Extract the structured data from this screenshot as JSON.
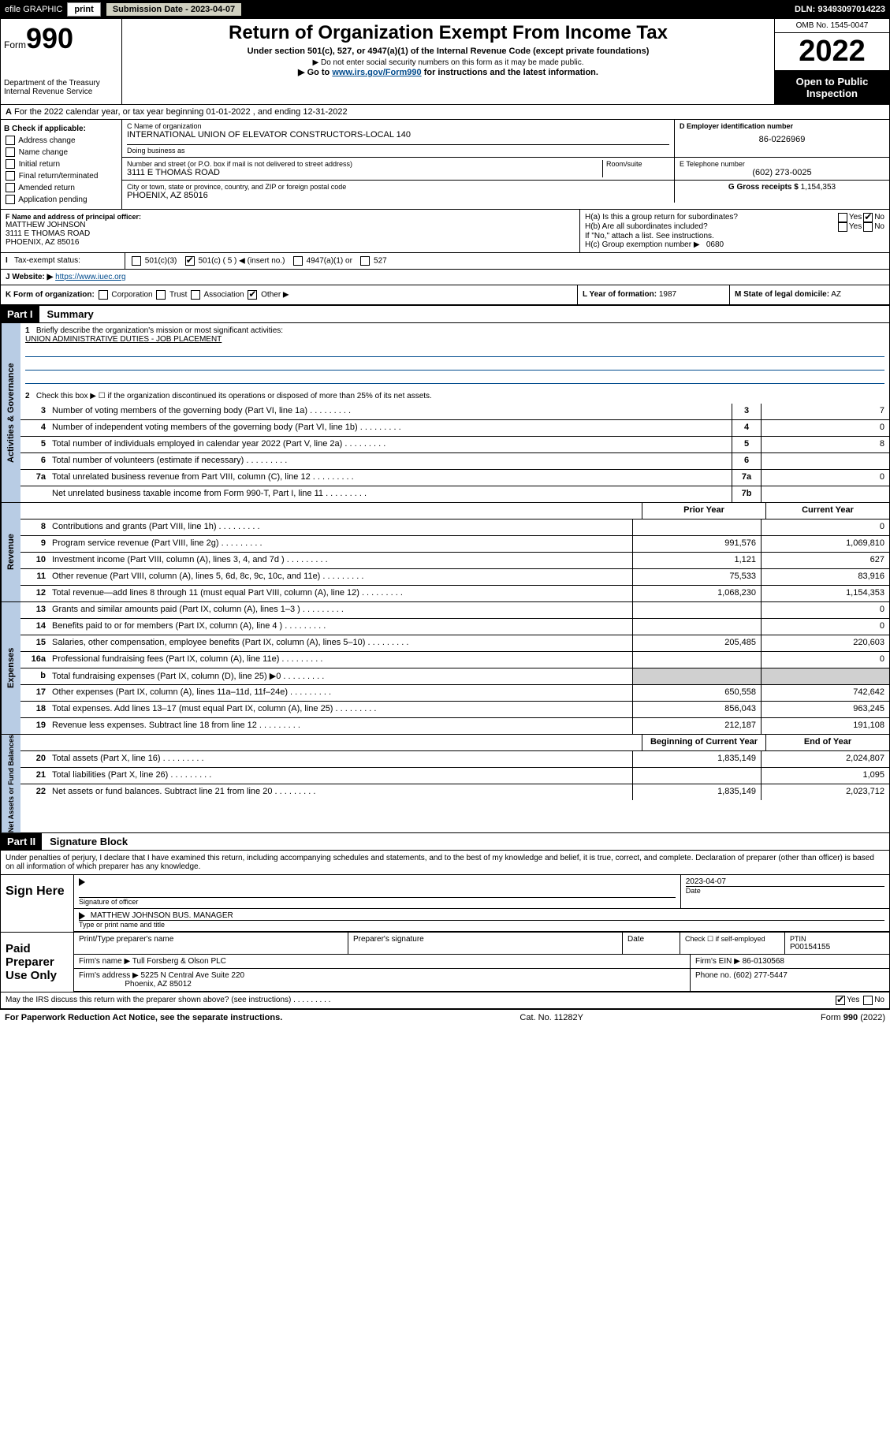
{
  "topbar": {
    "efile": "efile GRAPHIC",
    "print": "print",
    "submission": "Submission Date - 2023-04-07",
    "dln": "DLN: 93493097014223"
  },
  "header": {
    "form_prefix": "Form",
    "form_num": "990",
    "title": "Return of Organization Exempt From Income Tax",
    "subtitle": "Under section 501(c), 527, or 4947(a)(1) of the Internal Revenue Code (except private foundations)",
    "note1": "▶ Do not enter social security numbers on this form as it may be made public.",
    "note2_pre": "▶ Go to ",
    "note2_link": "www.irs.gov/Form990",
    "note2_post": " for instructions and the latest information.",
    "dept": "Department of the Treasury",
    "irs": "Internal Revenue Service",
    "omb": "OMB No. 1545-0047",
    "year": "2022",
    "open1": "Open to Public",
    "open2": "Inspection"
  },
  "row_a": "For the 2022 calendar year, or tax year beginning 01-01-2022    , and ending 12-31-2022",
  "section_b": {
    "title": "B Check if applicable:",
    "items": [
      "Address change",
      "Name change",
      "Initial return",
      "Final return/terminated",
      "Amended return",
      "Application pending"
    ]
  },
  "section_c": {
    "name_lbl": "C Name of organization",
    "name": "INTERNATIONAL UNION OF ELEVATOR CONSTRUCTORS-LOCAL 140",
    "dba_lbl": "Doing business as",
    "addr_lbl": "Number and street (or P.O. box if mail is not delivered to street address)",
    "room_lbl": "Room/suite",
    "addr": "3111 E THOMAS ROAD",
    "city_lbl": "City or town, state or province, country, and ZIP or foreign postal code",
    "city": "PHOENIX, AZ  85016"
  },
  "section_d": {
    "lbl": "D Employer identification number",
    "val": "86-0226969"
  },
  "section_e": {
    "lbl": "E Telephone number",
    "val": "(602) 273-0025"
  },
  "section_g": {
    "lbl": "G Gross receipts $",
    "val": "1,154,353"
  },
  "section_f": {
    "lbl": "F  Name and address of principal officer:",
    "name": "MATTHEW JOHNSON",
    "addr1": "3111 E THOMAS ROAD",
    "addr2": "PHOENIX, AZ  85016"
  },
  "section_h": {
    "ha": "H(a)  Is this a group return for subordinates?",
    "hb": "H(b)  Are all subordinates included?",
    "hb_note": "If \"No,\" attach a list. See instructions.",
    "hc": "H(c)  Group exemption number ▶",
    "hc_val": "0680",
    "yes": "Yes",
    "no": "No"
  },
  "section_i": {
    "lbl": "Tax-exempt status:",
    "o1": "501(c)(3)",
    "o2": "501(c) ( 5 ) ◀ (insert no.)",
    "o3": "4947(a)(1) or",
    "o4": "527"
  },
  "section_j": {
    "lbl": "J   Website: ▶",
    "val": "https://www.iuec.org"
  },
  "section_k": {
    "lbl": "K Form of organization:",
    "o1": "Corporation",
    "o2": "Trust",
    "o3": "Association",
    "o4": "Other ▶"
  },
  "section_l": {
    "lbl": "L Year of formation:",
    "val": "1987"
  },
  "section_m": {
    "lbl": "M State of legal domicile:",
    "val": "AZ"
  },
  "part1": {
    "header": "Part I",
    "title": "Summary",
    "line1_lbl": "Briefly describe the organization's mission or most significant activities:",
    "line1_val": "UNION ADMINISTRATIVE DUTIES - JOB PLACEMENT",
    "line2": "Check this box ▶ ☐  if the organization discontinued its operations or disposed of more than 25% of its net assets.",
    "prior_year": "Prior Year",
    "current_year": "Current Year",
    "beg_year": "Beginning of Current Year",
    "end_year": "End of Year",
    "groups": {
      "gov": "Activities & Governance",
      "rev": "Revenue",
      "exp": "Expenses",
      "net": "Net Assets or Fund Balances"
    },
    "lines": [
      {
        "n": "3",
        "desc": "Number of voting members of the governing body (Part VI, line 1a)",
        "box": "3",
        "v": "7"
      },
      {
        "n": "4",
        "desc": "Number of independent voting members of the governing body (Part VI, line 1b)",
        "box": "4",
        "v": "0"
      },
      {
        "n": "5",
        "desc": "Total number of individuals employed in calendar year 2022 (Part V, line 2a)",
        "box": "5",
        "v": "8"
      },
      {
        "n": "6",
        "desc": "Total number of volunteers (estimate if necessary)",
        "box": "6",
        "v": ""
      },
      {
        "n": "7a",
        "desc": "Total unrelated business revenue from Part VIII, column (C), line 12",
        "box": "7a",
        "v": "0"
      },
      {
        "n": "",
        "desc": "Net unrelated business taxable income from Form 990-T, Part I, line 11",
        "box": "7b",
        "v": ""
      }
    ],
    "rev_lines": [
      {
        "n": "8",
        "desc": "Contributions and grants (Part VIII, line 1h)",
        "p": "",
        "c": "0"
      },
      {
        "n": "9",
        "desc": "Program service revenue (Part VIII, line 2g)",
        "p": "991,576",
        "c": "1,069,810"
      },
      {
        "n": "10",
        "desc": "Investment income (Part VIII, column (A), lines 3, 4, and 7d )",
        "p": "1,121",
        "c": "627"
      },
      {
        "n": "11",
        "desc": "Other revenue (Part VIII, column (A), lines 5, 6d, 8c, 9c, 10c, and 11e)",
        "p": "75,533",
        "c": "83,916"
      },
      {
        "n": "12",
        "desc": "Total revenue—add lines 8 through 11 (must equal Part VIII, column (A), line 12)",
        "p": "1,068,230",
        "c": "1,154,353"
      }
    ],
    "exp_lines": [
      {
        "n": "13",
        "desc": "Grants and similar amounts paid (Part IX, column (A), lines 1–3 )",
        "p": "",
        "c": "0"
      },
      {
        "n": "14",
        "desc": "Benefits paid to or for members (Part IX, column (A), line 4 )",
        "p": "",
        "c": "0"
      },
      {
        "n": "15",
        "desc": "Salaries, other compensation, employee benefits (Part IX, column (A), lines 5–10)",
        "p": "205,485",
        "c": "220,603"
      },
      {
        "n": "16a",
        "desc": "Professional fundraising fees (Part IX, column (A), line 11e)",
        "p": "",
        "c": "0"
      },
      {
        "n": "b",
        "desc": "Total fundraising expenses (Part IX, column (D), line 25) ▶0",
        "p": "shade",
        "c": "shade"
      },
      {
        "n": "17",
        "desc": "Other expenses (Part IX, column (A), lines 11a–11d, 11f–24e)",
        "p": "650,558",
        "c": "742,642"
      },
      {
        "n": "18",
        "desc": "Total expenses. Add lines 13–17 (must equal Part IX, column (A), line 25)",
        "p": "856,043",
        "c": "963,245"
      },
      {
        "n": "19",
        "desc": "Revenue less expenses. Subtract line 18 from line 12",
        "p": "212,187",
        "c": "191,108"
      }
    ],
    "net_lines": [
      {
        "n": "20",
        "desc": "Total assets (Part X, line 16)",
        "p": "1,835,149",
        "c": "2,024,807"
      },
      {
        "n": "21",
        "desc": "Total liabilities (Part X, line 26)",
        "p": "",
        "c": "1,095"
      },
      {
        "n": "22",
        "desc": "Net assets or fund balances. Subtract line 21 from line 20",
        "p": "1,835,149",
        "c": "2,023,712"
      }
    ]
  },
  "part2": {
    "header": "Part II",
    "title": "Signature Block",
    "decl": "Under penalties of perjury, I declare that I have examined this return, including accompanying schedules and statements, and to the best of my knowledge and belief, it is true, correct, and complete. Declaration of preparer (other than officer) is based on all information of which preparer has any knowledge.",
    "sign_here": "Sign Here",
    "sig_officer": "Signature of officer",
    "date_lbl": "Date",
    "date_val": "2023-04-07",
    "officer_name": "MATTHEW JOHNSON  BUS. MANAGER",
    "officer_title_lbl": "Type or print name and title",
    "paid": "Paid Preparer Use Only",
    "prep_name_lbl": "Print/Type preparer's name",
    "prep_sig_lbl": "Preparer's signature",
    "check_if": "Check ☐ if self-employed",
    "ptin_lbl": "PTIN",
    "ptin": "P00154155",
    "firm_name_lbl": "Firm's name    ▶",
    "firm_name": "Tull Forsberg & Olson PLC",
    "firm_ein_lbl": "Firm's EIN ▶",
    "firm_ein": "86-0130568",
    "firm_addr_lbl": "Firm's address ▶",
    "firm_addr1": "5225 N Central Ave Suite 220",
    "firm_addr2": "Phoenix, AZ  85012",
    "phone_lbl": "Phone no.",
    "phone": "(602) 277-5447",
    "discuss": "May the IRS discuss this return with the preparer shown above? (see instructions)",
    "yes": "Yes",
    "no": "No"
  },
  "footer": {
    "left": "For Paperwork Reduction Act Notice, see the separate instructions.",
    "mid": "Cat. No. 11282Y",
    "right": "Form 990 (2022)"
  }
}
